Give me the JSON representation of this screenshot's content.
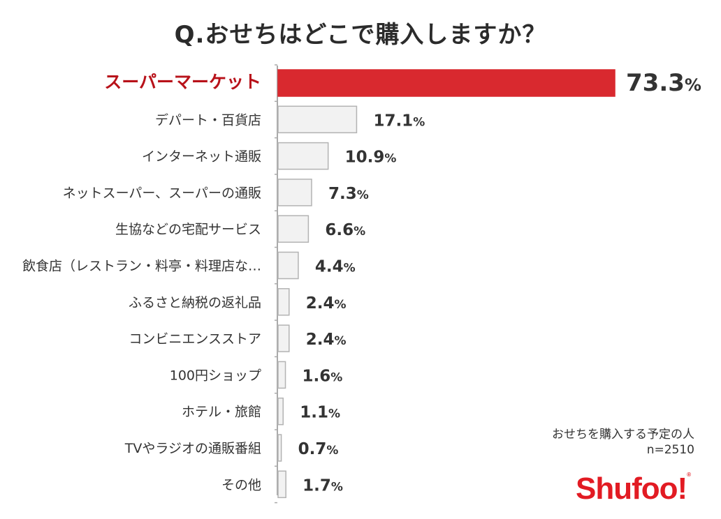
{
  "title": "Q.おせちはどこで購入しますか？",
  "note": {
    "line1": "おせちを購入する予定の人",
    "line2": "n=2510"
  },
  "brand": {
    "name": "Shufoo!",
    "color": "#e21b23"
  },
  "colors": {
    "highlight_bar": "#d9292f",
    "highlight_label": "#b8121a",
    "bar_fill": "#f2f2f2",
    "bar_stroke": "#b3b3b3",
    "text": "#333333"
  },
  "chart_data": {
    "type": "bar",
    "orientation": "horizontal",
    "title": "Q.おせちはどこで購入しますか？",
    "categories": [
      "スーパーマーケット",
      "デパート・百貨店",
      "インターネット通販",
      "ネットスーパー、スーパーの通販",
      "生協などの宅配サービス",
      "飲食店（レストラン・料亭・料理店な…",
      "ふるさと納税の返礼品",
      "コンビニエンスストア",
      "100円ショップ",
      "ホテル・旅館",
      "TVやラジオの通販番組",
      "その他"
    ],
    "values": [
      73.3,
      17.1,
      10.9,
      7.3,
      6.6,
      4.4,
      2.4,
      2.4,
      1.6,
      1.1,
      0.7,
      1.7
    ],
    "unit": "%",
    "highlight_index": 0,
    "xlim": [
      0,
      73.3
    ],
    "grid": false,
    "legend": "none"
  }
}
